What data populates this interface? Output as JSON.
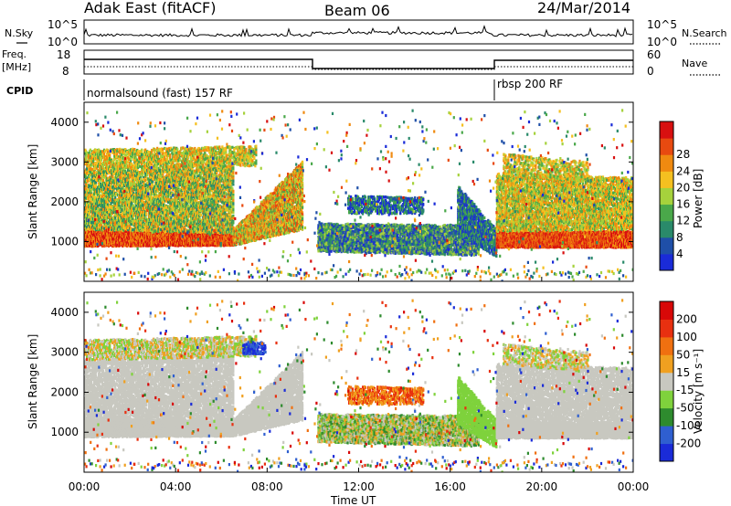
{
  "header": {
    "station": "Adak East (fitACF)",
    "beam": "Beam 06",
    "date": "24/Mar/2014"
  },
  "left_labels": {
    "nsky": "N.Sky",
    "freq_line1": "Freq.",
    "freq_line2": "[MHz]",
    "cpid": "CPID"
  },
  "right_labels": {
    "nsearch": "N.Search",
    "nave": "Nave"
  },
  "noise_panel": {
    "left_ticks": [
      "10^5",
      "10^0"
    ],
    "right_ticks": [
      "10^5",
      "10^0"
    ]
  },
  "freq_panel": {
    "left_ticks": [
      "18",
      "8"
    ],
    "right_ticks": [
      "60",
      "0"
    ]
  },
  "cpid_panel": {
    "segments": [
      "normalsound (fast) 157 RF",
      "rbsp 200 RF"
    ]
  },
  "chart_data": [
    {
      "type": "heatmap",
      "title": "",
      "ylabel": "Slant Range [km]",
      "ylim": [
        0,
        4500
      ],
      "yticks": [
        1000,
        2000,
        3000,
        4000
      ],
      "colorbar": {
        "label": "Power [dB]",
        "ticks": [
          "4",
          "8",
          "12",
          "16",
          "20",
          "24",
          "28"
        ],
        "colors": [
          "#1a2bd8",
          "#1f4fa8",
          "#2a8a6a",
          "#4aa84a",
          "#a6d23c",
          "#f5c020",
          "#f08a10",
          "#e84a10",
          "#d81010"
        ]
      },
      "xlim": [
        "00:00",
        "24:00"
      ]
    },
    {
      "type": "heatmap",
      "title": "",
      "ylabel": "Slant Range [km]",
      "ylim": [
        0,
        4500
      ],
      "yticks": [
        1000,
        2000,
        3000,
        4000
      ],
      "colorbar": {
        "label": "Velocity [m s⁻¹]",
        "ticks": [
          "200",
          "100",
          "50",
          "15",
          "-15",
          "-50",
          "-100",
          "-200"
        ],
        "colors": [
          "#1a2bd8",
          "#2f5fd0",
          "#2e8b2e",
          "#7fd23c",
          "#c8c8c0",
          "#f0a020",
          "#f07010",
          "#e83010",
          "#d80808"
        ]
      },
      "xlim": [
        "00:00",
        "24:00"
      ]
    }
  ],
  "x_axis": {
    "ticks": [
      "00:00",
      "04:00",
      "08:00",
      "12:00",
      "16:00",
      "20:00",
      "00:00"
    ],
    "label": "Time UT"
  }
}
